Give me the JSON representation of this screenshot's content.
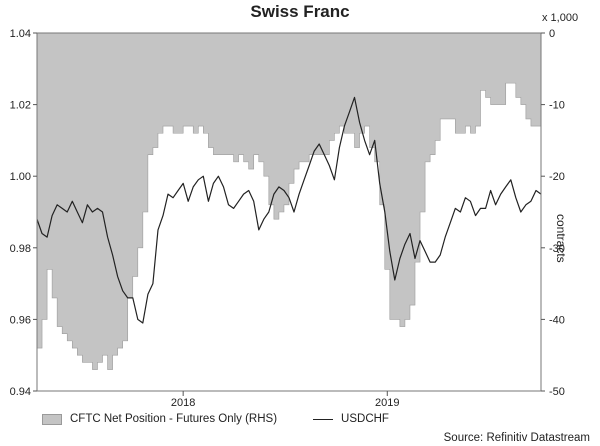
{
  "chart_data": {
    "type": "area+line",
    "title": "Swiss Franc",
    "units_note": "x 1,000",
    "right_axis_label": "contracts",
    "source": "Source: Refinitiv Datastream",
    "left_axis": {
      "ylim": [
        0.94,
        1.04
      ],
      "ticks": [
        "0.94",
        "0.96",
        "0.98",
        "1.00",
        "1.02",
        "1.04"
      ]
    },
    "right_axis": {
      "ylim": [
        -50,
        0
      ],
      "ticks": [
        "-50",
        "-40",
        "-30",
        "-20",
        "-10",
        "0"
      ]
    },
    "x_axis": {
      "ticks": [
        {
          "label": "2018",
          "t": 0.29
        },
        {
          "label": "2019",
          "t": 0.695
        }
      ]
    },
    "grid": false,
    "legend_position": "bottom",
    "series": [
      {
        "name": "CFTC Net Position - Futures Only (RHS)",
        "axis": "right",
        "style": "area",
        "color": "#c4c4c4",
        "t": [
          0.0,
          0.01,
          0.02,
          0.03,
          0.04,
          0.05,
          0.06,
          0.07,
          0.08,
          0.09,
          0.1,
          0.11,
          0.12,
          0.13,
          0.14,
          0.15,
          0.16,
          0.17,
          0.18,
          0.19,
          0.2,
          0.21,
          0.22,
          0.23,
          0.24,
          0.25,
          0.26,
          0.27,
          0.28,
          0.29,
          0.3,
          0.31,
          0.32,
          0.33,
          0.34,
          0.35,
          0.36,
          0.37,
          0.38,
          0.39,
          0.4,
          0.41,
          0.42,
          0.43,
          0.44,
          0.45,
          0.46,
          0.47,
          0.48,
          0.49,
          0.5,
          0.51,
          0.52,
          0.53,
          0.54,
          0.55,
          0.56,
          0.57,
          0.58,
          0.59,
          0.6,
          0.61,
          0.62,
          0.63,
          0.64,
          0.65,
          0.66,
          0.67,
          0.68,
          0.69,
          0.7,
          0.71,
          0.72,
          0.73,
          0.74,
          0.75,
          0.76,
          0.77,
          0.78,
          0.79,
          0.8,
          0.81,
          0.82,
          0.83,
          0.84,
          0.85,
          0.86,
          0.87,
          0.88,
          0.89,
          0.9,
          0.91,
          0.92,
          0.93,
          0.94,
          0.95,
          0.96,
          0.97,
          0.98,
          0.99,
          1.0
        ],
        "values": [
          -44,
          -40,
          -33,
          -37,
          -41,
          -42,
          -43,
          -44,
          -45,
          -46,
          -46,
          -47,
          -46,
          -45,
          -47,
          -45,
          -44,
          -43,
          -37,
          -34,
          -30,
          -25,
          -17,
          -16,
          -14,
          -13,
          -13,
          -14,
          -14,
          -13,
          -13,
          -14,
          -13,
          -14,
          -16,
          -17,
          -17,
          -17,
          -17,
          -18,
          -17,
          -18,
          -19,
          -17,
          -18,
          -20,
          -24,
          -26,
          -25,
          -24,
          -21,
          -19,
          -18,
          -18,
          -17,
          -17,
          -17,
          -17,
          -15,
          -14,
          -13,
          -14,
          -14,
          -16,
          -14,
          -13,
          -16,
          -18,
          -24,
          -33,
          -40,
          -40,
          -41,
          -40,
          -38,
          -32,
          -25,
          -18,
          -17,
          -15,
          -12,
          -12,
          -12,
          -14,
          -14,
          -13,
          -14,
          -13,
          -8,
          -9,
          -10,
          -10,
          -10,
          -7,
          -7,
          -9,
          -10,
          -12,
          -13,
          -13,
          -12
        ]
      },
      {
        "name": "USDCHF",
        "axis": "left",
        "style": "line",
        "color": "#222222",
        "t": [
          0.0,
          0.01,
          0.02,
          0.03,
          0.04,
          0.05,
          0.06,
          0.07,
          0.08,
          0.09,
          0.1,
          0.11,
          0.12,
          0.13,
          0.14,
          0.15,
          0.16,
          0.17,
          0.18,
          0.19,
          0.2,
          0.21,
          0.22,
          0.23,
          0.24,
          0.25,
          0.26,
          0.27,
          0.28,
          0.29,
          0.3,
          0.31,
          0.32,
          0.33,
          0.34,
          0.35,
          0.36,
          0.37,
          0.38,
          0.39,
          0.4,
          0.41,
          0.42,
          0.43,
          0.44,
          0.45,
          0.46,
          0.47,
          0.48,
          0.49,
          0.5,
          0.51,
          0.52,
          0.53,
          0.54,
          0.55,
          0.56,
          0.57,
          0.58,
          0.59,
          0.6,
          0.61,
          0.62,
          0.63,
          0.64,
          0.65,
          0.66,
          0.67,
          0.68,
          0.69,
          0.7,
          0.71,
          0.72,
          0.73,
          0.74,
          0.75,
          0.76,
          0.77,
          0.78,
          0.79,
          0.8,
          0.81,
          0.82,
          0.83,
          0.84,
          0.85,
          0.86,
          0.87,
          0.88,
          0.89,
          0.9,
          0.91,
          0.92,
          0.93,
          0.94,
          0.95,
          0.96,
          0.97,
          0.98,
          0.99,
          1.0
        ],
        "values": [
          0.988,
          0.984,
          0.983,
          0.989,
          0.992,
          0.991,
          0.99,
          0.993,
          0.99,
          0.987,
          0.992,
          0.99,
          0.991,
          0.99,
          0.983,
          0.978,
          0.972,
          0.968,
          0.966,
          0.966,
          0.96,
          0.959,
          0.967,
          0.97,
          0.985,
          0.989,
          0.995,
          0.994,
          0.996,
          0.998,
          0.993,
          0.997,
          0.999,
          1.0,
          0.993,
          0.998,
          1.0,
          0.997,
          0.992,
          0.991,
          0.993,
          0.995,
          0.996,
          0.993,
          0.985,
          0.988,
          0.99,
          0.995,
          0.997,
          0.996,
          0.994,
          0.99,
          0.995,
          0.999,
          1.003,
          1.007,
          1.009,
          1.006,
          1.003,
          0.999,
          1.008,
          1.014,
          1.018,
          1.022,
          1.015,
          1.01,
          1.006,
          1.01,
          0.998,
          0.99,
          0.979,
          0.971,
          0.977,
          0.981,
          0.984,
          0.977,
          0.982,
          0.979,
          0.976,
          0.976,
          0.978,
          0.983,
          0.987,
          0.991,
          0.99,
          0.994,
          0.993,
          0.989,
          0.991,
          0.991,
          0.996,
          0.992,
          0.995,
          0.997,
          0.999,
          0.994,
          0.99,
          0.992,
          0.993,
          0.996,
          0.995
        ]
      }
    ]
  }
}
